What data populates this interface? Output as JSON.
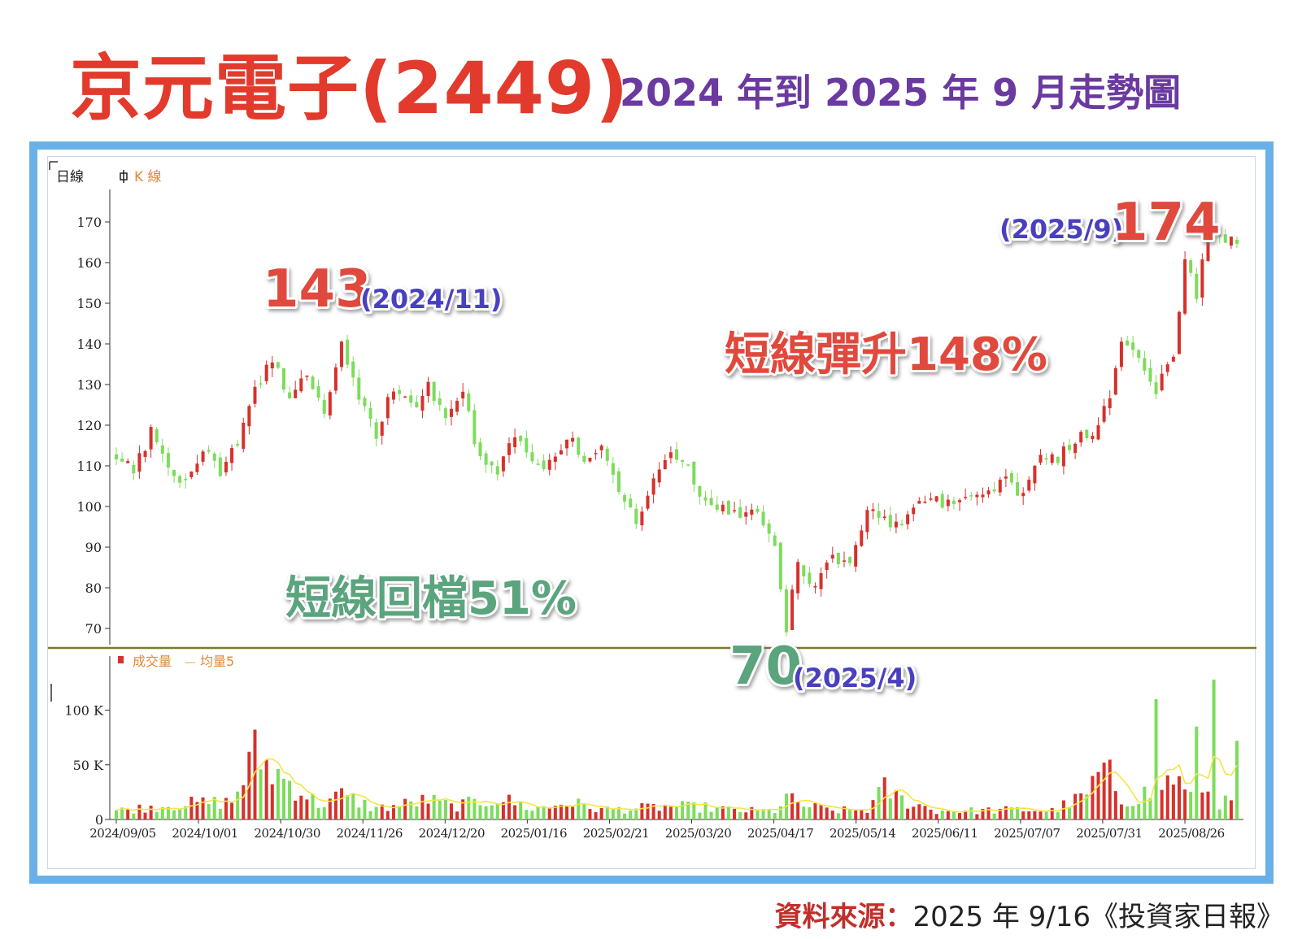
{
  "header": {
    "title_main": "京元電子(2449)",
    "title_sub": "2024 年到 2025 年 9 月走勢圖"
  },
  "source": {
    "label": "資料來源：",
    "text": "2025 年 9/16《投資家日報》"
  },
  "colors": {
    "title": "#e23a2c",
    "subtitle": "#6a3aa0",
    "frame": "#6ab0e8",
    "up": "#d6312a",
    "down": "#7ddc5c",
    "ma": "#f2e646",
    "divider": "#7a7a2a",
    "ann_red": "#e0483d",
    "ann_green": "#5aa47e",
    "ann_blue": "#4a3fc0"
  },
  "chart_data": {
    "type": "candlestick",
    "price_panel": {
      "period_label": "日線",
      "series_label": "K 線",
      "ylim": [
        68,
        176
      ],
      "yticks": [
        70,
        80,
        90,
        100,
        110,
        120,
        130,
        140,
        150,
        160,
        170
      ]
    },
    "volume_panel": {
      "legend_volume": "成交量",
      "legend_ma": "均量5",
      "ylim": [
        0,
        145
      ],
      "yticks": [
        0,
        50,
        100
      ],
      "ytick_labels": [
        "0",
        "50 K",
        "100 K"
      ]
    },
    "x_tick_labels": [
      "2024/09/05",
      "2024/10/01",
      "2024/10/30",
      "2024/11/26",
      "2024/12/20",
      "2025/01/16",
      "2025/02/21",
      "2025/03/20",
      "2025/04/17",
      "2025/05/14",
      "2025/06/11",
      "2025/07/07",
      "2025/07/31",
      "2025/08/26"
    ],
    "close_path": [
      [
        0,
        112
      ],
      [
        3,
        109
      ],
      [
        6,
        118
      ],
      [
        9,
        110
      ],
      [
        12,
        105
      ],
      [
        15,
        115
      ],
      [
        18,
        108
      ],
      [
        21,
        116
      ],
      [
        24,
        128
      ],
      [
        27,
        136
      ],
      [
        30,
        126
      ],
      [
        33,
        133
      ],
      [
        36,
        122
      ],
      [
        39,
        141
      ],
      [
        42,
        127
      ],
      [
        45,
        118
      ],
      [
        48,
        129
      ],
      [
        51,
        124
      ],
      [
        54,
        130
      ],
      [
        57,
        122
      ],
      [
        60,
        128
      ],
      [
        63,
        111
      ],
      [
        66,
        108
      ],
      [
        69,
        117
      ],
      [
        72,
        112
      ],
      [
        75,
        110
      ],
      [
        78,
        118
      ],
      [
        81,
        110
      ],
      [
        84,
        115
      ],
      [
        87,
        103
      ],
      [
        90,
        97
      ],
      [
        93,
        106
      ],
      [
        96,
        114
      ],
      [
        99,
        109
      ],
      [
        102,
        101
      ],
      [
        105,
        100
      ],
      [
        108,
        98
      ],
      [
        111,
        99
      ],
      [
        114,
        89
      ],
      [
        116,
        70
      ],
      [
        118,
        86
      ],
      [
        121,
        80
      ],
      [
        124,
        87
      ],
      [
        127,
        85
      ],
      [
        130,
        100
      ],
      [
        133,
        97
      ],
      [
        136,
        95
      ],
      [
        139,
        100
      ],
      [
        142,
        101
      ],
      [
        145,
        101
      ],
      [
        148,
        103
      ],
      [
        151,
        105
      ],
      [
        154,
        106
      ],
      [
        157,
        102
      ],
      [
        160,
        113
      ],
      [
        163,
        112
      ],
      [
        166,
        117
      ],
      [
        169,
        118
      ],
      [
        172,
        128
      ],
      [
        174,
        141
      ],
      [
        177,
        137
      ],
      [
        180,
        128
      ],
      [
        183,
        138
      ],
      [
        185,
        160
      ],
      [
        187,
        152
      ],
      [
        189,
        168
      ],
      [
        191,
        165
      ]
    ],
    "volume_path": [
      [
        0,
        8
      ],
      [
        10,
        14
      ],
      [
        20,
        16
      ],
      [
        24,
        60
      ],
      [
        27,
        45
      ],
      [
        31,
        30
      ],
      [
        35,
        14
      ],
      [
        39,
        22
      ],
      [
        45,
        10
      ],
      [
        50,
        14
      ],
      [
        54,
        18
      ],
      [
        58,
        12
      ],
      [
        63,
        16
      ],
      [
        66,
        20
      ],
      [
        72,
        10
      ],
      [
        75,
        12
      ],
      [
        78,
        16
      ],
      [
        84,
        9
      ],
      [
        90,
        10
      ],
      [
        96,
        12
      ],
      [
        102,
        11
      ],
      [
        108,
        8
      ],
      [
        114,
        8
      ],
      [
        116,
        20
      ],
      [
        118,
        14
      ],
      [
        124,
        8
      ],
      [
        130,
        9
      ],
      [
        133,
        28
      ],
      [
        136,
        18
      ],
      [
        142,
        8
      ],
      [
        148,
        8
      ],
      [
        156,
        9
      ],
      [
        162,
        8
      ],
      [
        168,
        22
      ],
      [
        171,
        52
      ],
      [
        174,
        18
      ],
      [
        178,
        22
      ],
      [
        180,
        26
      ],
      [
        183,
        40
      ],
      [
        186,
        18
      ],
      [
        188,
        22
      ],
      [
        190,
        30
      ],
      [
        191,
        16
      ],
      [
        194,
        14
      ]
    ],
    "volume_spikes": [
      [
        171,
        52
      ],
      [
        178,
        30
      ],
      [
        180,
        110
      ],
      [
        190,
        128
      ],
      [
        187,
        85
      ],
      [
        194,
        72
      ]
    ],
    "annotations": [
      {
        "value": "143",
        "date": "(2024/11)"
      },
      {
        "value": "70",
        "date": "(2025/4)"
      },
      {
        "value": "174",
        "date": "(2025/9)"
      },
      {
        "text": "短線回檔51%"
      },
      {
        "text": "短線彈升148%"
      }
    ]
  }
}
